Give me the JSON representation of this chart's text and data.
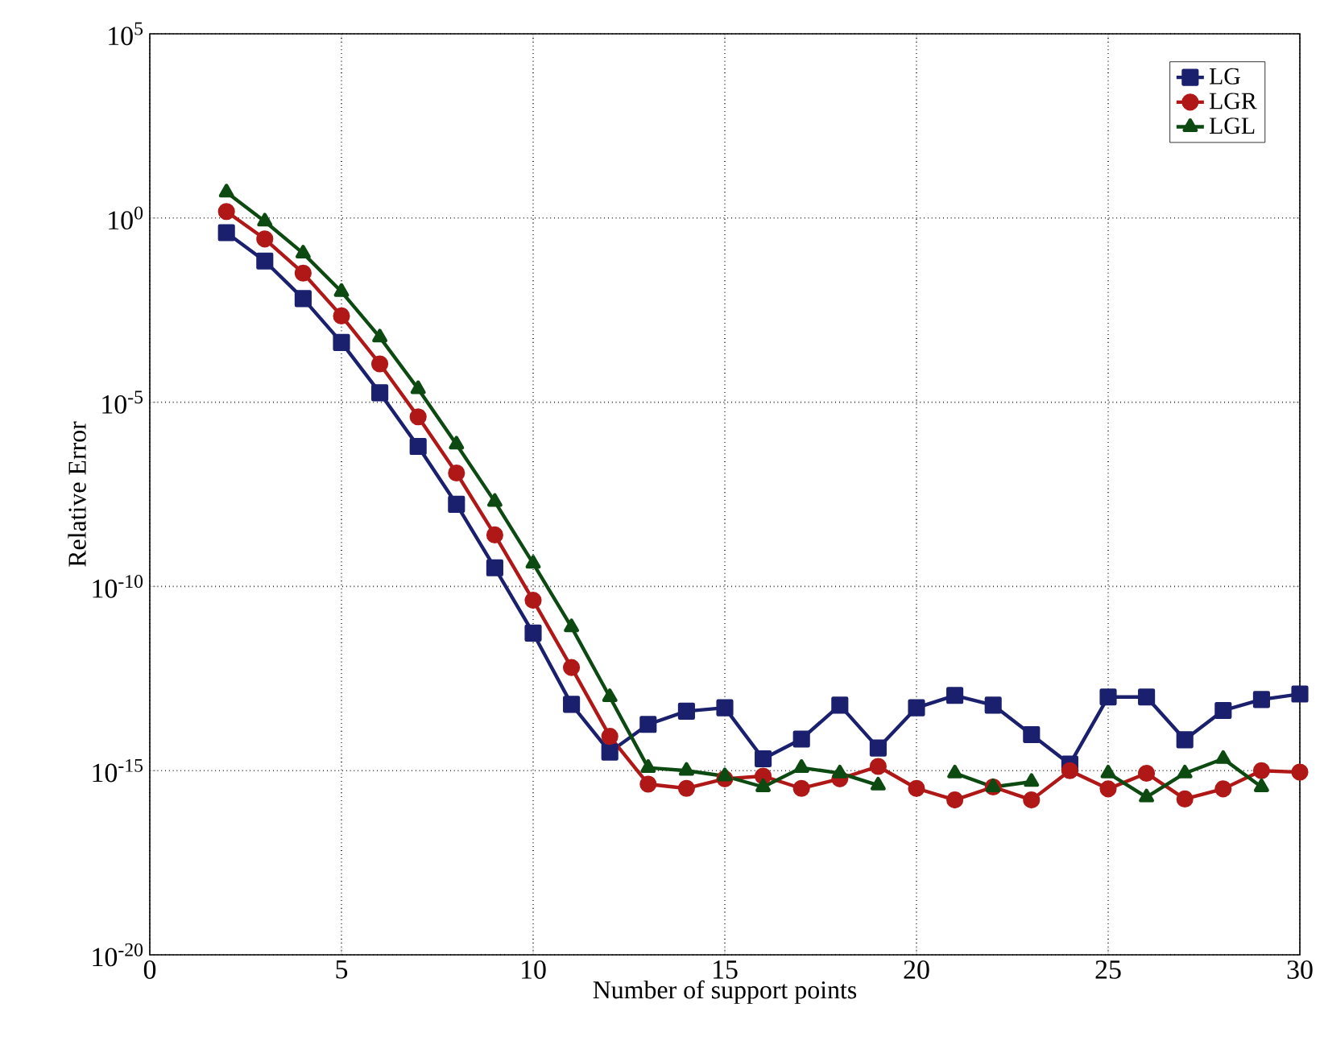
{
  "chart_data": {
    "type": "line",
    "xlabel": "Number of support points",
    "ylabel": "Relative Error",
    "x": [
      2,
      3,
      4,
      5,
      6,
      7,
      8,
      9,
      10,
      11,
      12,
      13,
      14,
      15,
      16,
      17,
      18,
      19,
      20,
      21,
      22,
      23,
      24,
      25,
      26,
      27,
      28,
      29,
      30
    ],
    "series": [
      {
        "name": "LG",
        "color": "#1a1f6e",
        "marker": "square",
        "values": [
          0.4,
          0.068,
          0.0065,
          0.00042,
          1.8e-05,
          6.3e-07,
          1.7e-08,
          3.2e-10,
          5.4e-12,
          6.3e-14,
          3.2e-15,
          1.8e-14,
          4.1e-14,
          5.1e-14,
          2.1e-15,
          7.2e-15,
          6e-14,
          4.1e-15,
          5.1e-14,
          1.1e-13,
          6e-14,
          9.5e-15,
          1.5e-15,
          1e-13,
          1e-13,
          6.9e-15,
          4.3e-14,
          8.5e-14,
          1.2e-13
        ]
      },
      {
        "name": "LGR",
        "color": "#b01818",
        "marker": "circle",
        "values": [
          1.5,
          0.27,
          0.032,
          0.0022,
          0.00011,
          4e-06,
          1.2e-07,
          2.5e-09,
          4.2e-11,
          6.3e-13,
          8.5e-15,
          4.3e-16,
          3.3e-16,
          6e-16,
          7.1e-16,
          3.3e-16,
          6e-16,
          1.3e-15,
          3.3e-16,
          1.6e-16,
          3.6e-16,
          1.6e-16,
          1e-15,
          3.2e-16,
          8.5e-16,
          1.7e-16,
          3.2e-16,
          1e-15,
          9.1e-16
        ]
      },
      {
        "name": "LGL",
        "color": "#0d4a12",
        "marker": "triangle",
        "values": [
          5,
          0.81,
          0.11,
          0.01,
          0.00058,
          2.3e-05,
          7.2e-07,
          2e-08,
          4.2e-10,
          7.9e-12,
          1e-13,
          1.2e-15,
          1e-15,
          7.1e-16,
          3.6e-16,
          1.2e-15,
          8.5e-16,
          4e-16,
          null,
          8.5e-16,
          3.6e-16,
          5e-16,
          null,
          8.5e-16,
          1.9e-16,
          8.5e-16,
          2.1e-15,
          3.6e-16,
          null
        ]
      }
    ],
    "xlim": [
      0,
      30
    ],
    "xticks": [
      0,
      5,
      10,
      15,
      20,
      25,
      30
    ],
    "ylim": [
      1e-20,
      100000.0
    ],
    "yticks": [
      {
        "value": 1e-20,
        "label": "10$^{-20}$"
      },
      {
        "value": 1e-15,
        "label": "10$^{-15}$"
      },
      {
        "value": 1e-10,
        "label": "10$^{-10}$"
      },
      {
        "value": 1e-05,
        "label": "10$^{-5}$"
      },
      {
        "value": 1,
        "label": "10$^{0}$"
      },
      {
        "value": 100000.0,
        "label": "10$^{5}$"
      }
    ],
    "log": "y",
    "grid": true,
    "legend": "top right",
    "line_style": "solid"
  }
}
